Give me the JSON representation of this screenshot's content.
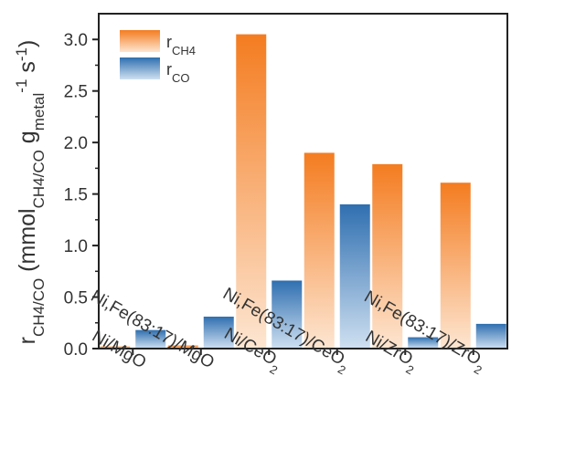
{
  "chart_data": {
    "type": "bar",
    "categories": [
      "Ni/MgO",
      "Ni,Fe(83:17)/MgO",
      "Ni/CeO2",
      "Ni,Fe(83:17)/CeO2",
      "Ni/ZrO2",
      "Ni,Fe(83:17)/ZrO2"
    ],
    "series": [
      {
        "name": "r_CH4",
        "values": [
          0.02,
          0.03,
          3.05,
          1.9,
          1.79,
          1.61
        ],
        "color_top": "#f47c20",
        "color_bottom": "#fde6d2"
      },
      {
        "name": "r_CO",
        "values": [
          0.18,
          0.31,
          0.66,
          1.4,
          0.11,
          0.24
        ],
        "color_top": "#2f6fb0",
        "color_bottom": "#cfe0f1"
      }
    ],
    "ylabel": "r_CH4/CO (mmol_CH4/CO g_metal^-1 s^-1)",
    "ylim": [
      0,
      3.25
    ],
    "yticks": [
      "0.0",
      "0.5",
      "1.0",
      "1.5",
      "2.0",
      "2.5",
      "3.0"
    ],
    "legend_position": "top-left",
    "legend": [
      {
        "main": "r",
        "sub": "CH4"
      },
      {
        "main": "r",
        "sub": "CO"
      }
    ],
    "category_labels": [
      {
        "main": "Ni/MgO",
        "sub": ""
      },
      {
        "main": "Ni,Fe(83:17)/MgO",
        "sub": ""
      },
      {
        "main": "Ni/CeO",
        "sub": "2"
      },
      {
        "main": "Ni,Fe(83:17)/CeO",
        "sub": "2"
      },
      {
        "main": "Ni/ZrO",
        "sub": "2"
      },
      {
        "main": "Ni,Fe(83:17)/ZrO",
        "sub": "2"
      }
    ],
    "ylabel_parts": {
      "r": "r",
      "r_sub": "CH4/CO",
      "open": " (mmol",
      "mmol_sub": "CH4/CO",
      "g": " g",
      "g_sub": "metal",
      "g_sup": "-1",
      "s": " s",
      "s_sup": "-1",
      "close": ")"
    },
    "grid": false
  }
}
